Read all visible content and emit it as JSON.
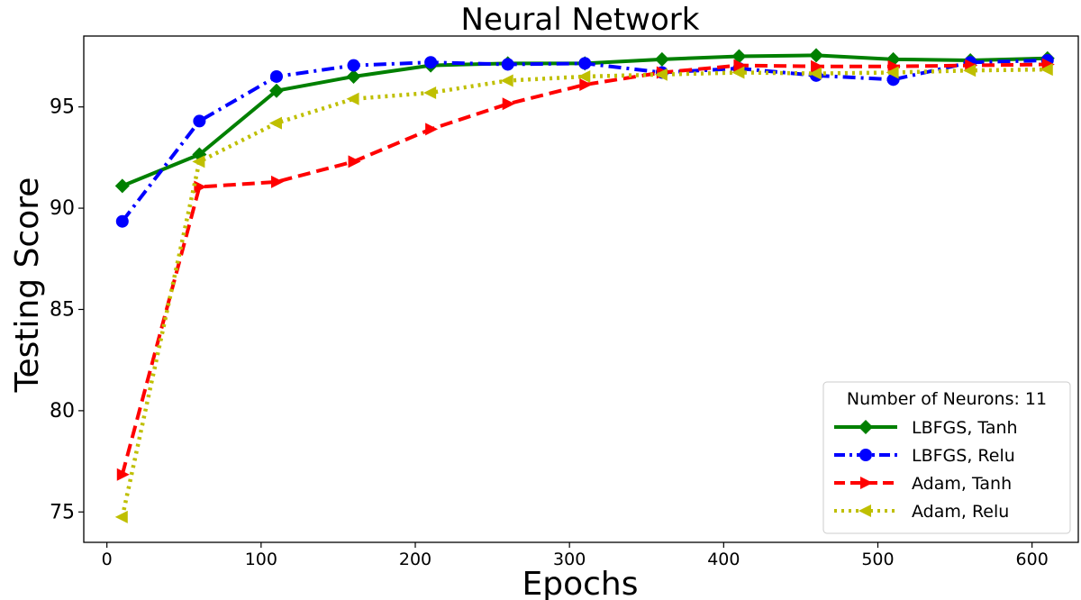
{
  "chart_data": {
    "type": "line",
    "title": "Neural Network",
    "xlabel": "Epochs",
    "ylabel": "Testing Score",
    "xlim": [
      -15,
      630
    ],
    "ylim": [
      73.5,
      98.5
    ],
    "xticks": [
      0,
      100,
      200,
      300,
      400,
      500,
      600
    ],
    "yticks": [
      75,
      80,
      85,
      90,
      95
    ],
    "grid": false,
    "legend": {
      "title": "Number of Neurons: 11",
      "placement": "bottom-right"
    },
    "x": [
      10,
      60,
      110,
      160,
      210,
      260,
      310,
      360,
      410,
      460,
      510,
      560,
      610
    ],
    "series": [
      {
        "name": "LBFGS, Tanh",
        "color": "#008000",
        "line_style": "solid",
        "marker": "diamond",
        "values": [
          91.1,
          92.65,
          95.8,
          96.5,
          97.05,
          97.15,
          97.15,
          97.35,
          97.5,
          97.55,
          97.35,
          97.3,
          97.4
        ]
      },
      {
        "name": "LBFGS, Relu",
        "color": "#0000ff",
        "line_style": "dashdot",
        "marker": "circle",
        "values": [
          89.35,
          94.3,
          96.5,
          97.05,
          97.2,
          97.1,
          97.15,
          96.7,
          96.9,
          96.55,
          96.35,
          97.2,
          97.3
        ]
      },
      {
        "name": "Adam, Tanh",
        "color": "#ff0000",
        "line_style": "dashed",
        "marker": "triangle-right",
        "values": [
          76.85,
          91.05,
          91.3,
          92.3,
          93.9,
          95.15,
          96.1,
          96.7,
          97.05,
          97.0,
          97.0,
          97.05,
          97.1
        ]
      },
      {
        "name": "Adam, Relu",
        "color": "#bfbf00",
        "line_style": "dotted",
        "marker": "triangle-left",
        "values": [
          74.75,
          92.3,
          94.2,
          95.4,
          95.7,
          96.3,
          96.5,
          96.6,
          96.7,
          96.65,
          96.7,
          96.8,
          96.85
        ]
      }
    ]
  }
}
